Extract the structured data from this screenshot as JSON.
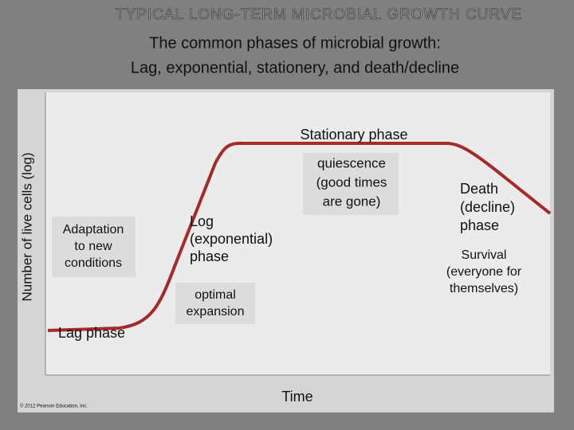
{
  "header": {
    "title": "TYPICAL LONG-TERM MICROBIAL GROWTH CURVE",
    "subtitle": [
      "The common phases of microbial growth:",
      "Lag, exponential, stationery, and death/decline"
    ]
  },
  "diagram": {
    "y_axis_label": "Number of live cells (log)",
    "x_axis_label": "Time",
    "copyright": "© 2012 Pearson Education, Inc.",
    "labels": {
      "lag_phase": [
        "Lag phase"
      ],
      "adaptation": [
        "Adaptation",
        "to new",
        "conditions"
      ],
      "log_phase": [
        "Log",
        "(exponential)",
        "phase"
      ],
      "optimal": [
        "optimal",
        "expansion"
      ],
      "stationary_phase": [
        "Stationary phase"
      ],
      "quiescence": [
        "quiescence",
        "(good times",
        "are gone)"
      ],
      "death_phase": [
        "Death",
        "(decline)",
        "phase"
      ],
      "survival": [
        "Survival",
        "(everyone for",
        "themselves)"
      ]
    }
  }
}
